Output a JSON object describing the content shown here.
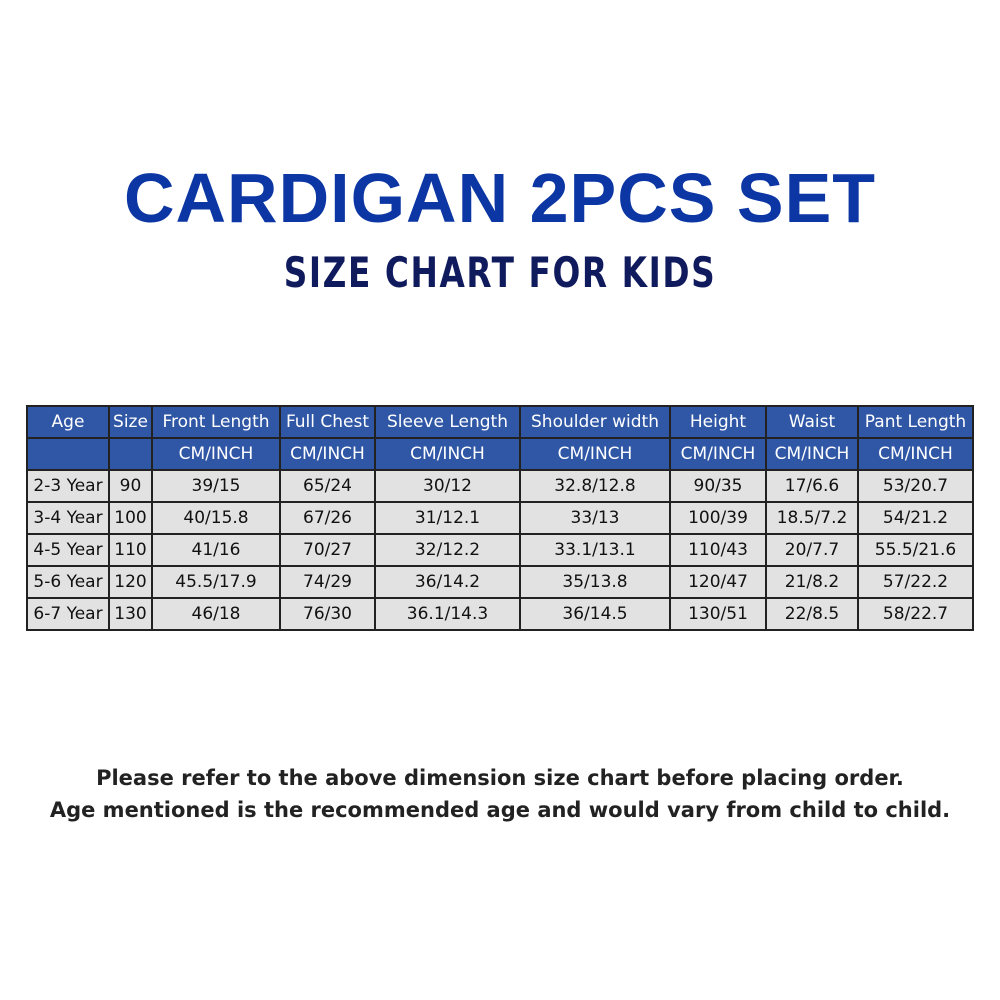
{
  "title": "CARDIGAN 2PCS SET",
  "subtitle": "SIZE CHART FOR KIDS",
  "table": {
    "headers": [
      "Age",
      "Size",
      "Front Length",
      "Full Chest",
      "Sleeve Length",
      "Shoulder width",
      "Height",
      "Waist",
      "Pant Length"
    ],
    "units": [
      "",
      "",
      "CM/INCH",
      "CM/INCH",
      "CM/INCH",
      "CM/INCH",
      "CM/INCH",
      "CM/INCH",
      "CM/INCH"
    ],
    "rows": [
      [
        "2-3 Year",
        "90",
        "39/15",
        "65/24",
        "30/12",
        "32.8/12.8",
        "90/35",
        "17/6.6",
        "53/20.7"
      ],
      [
        "3-4 Year",
        "100",
        "40/15.8",
        "67/26",
        "31/12.1",
        "33/13",
        "100/39",
        "18.5/7.2",
        "54/21.2"
      ],
      [
        "4-5 Year",
        "110",
        "41/16",
        "70/27",
        "32/12.2",
        "33.1/13.1",
        "110/43",
        "20/7.7",
        "55.5/21.6"
      ],
      [
        "5-6 Year",
        "120",
        "45.5/17.9",
        "74/29",
        "36/14.2",
        "35/13.8",
        "120/47",
        "21/8.2",
        "57/22.2"
      ],
      [
        "6-7 Year",
        "130",
        "46/18",
        "76/30",
        "36.1/14.3",
        "36/14.5",
        "130/51",
        "22/8.5",
        "58/22.7"
      ]
    ]
  },
  "notes": [
    "Please refer to the above dimension size chart before placing order.",
    "Age mentioned is the recommended age and would vary from child to child."
  ],
  "colors": {
    "title": "#0b36a3",
    "subtitle": "#101b5e",
    "header_bg": "#2f57a6",
    "cell_bg": "#e2e2e2"
  }
}
